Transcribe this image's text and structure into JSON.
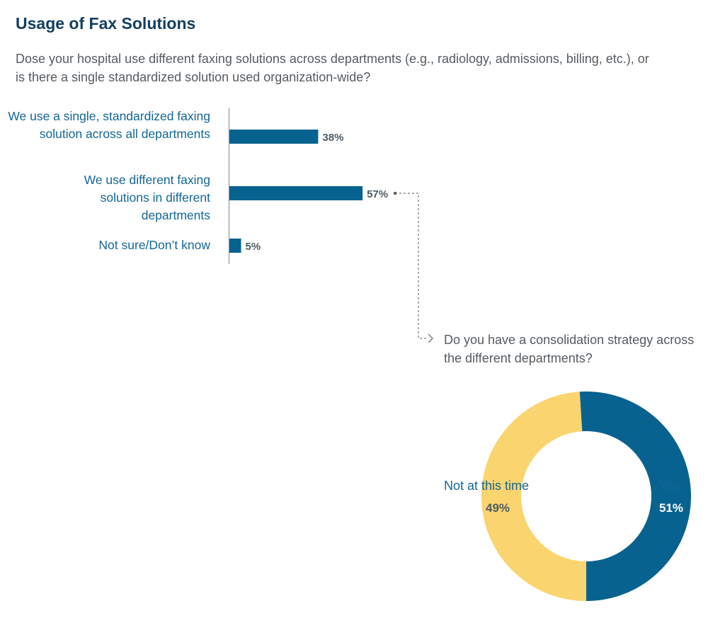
{
  "title": "Usage of Fax Solutions",
  "subtitle": "Dose your hospital use different faxing solutions across departments (e.g., radiology, admissions, billing, etc.), or is there a single standardized solution used organization-wide?",
  "colors": {
    "blue": "#08628f",
    "yellow": "#fad46e",
    "title": "#123f63",
    "label": "#136696"
  },
  "chart_data": [
    {
      "type": "bar",
      "orientation": "horizontal",
      "categories": [
        "We use a single, standardized faxing solution across all departments",
        "We use different faxing solutions in different departments",
        "Not sure/Don’t know"
      ],
      "values": [
        38,
        57,
        5
      ],
      "data_labels": [
        "38%",
        "57%",
        "5%"
      ],
      "xlim": [
        0,
        100
      ]
    },
    {
      "type": "pie",
      "donut": true,
      "title": "Do you have a consolidation strategy across the different departments?",
      "categories": [
        "Yes",
        "Not at this time"
      ],
      "values": [
        51,
        49
      ],
      "data_labels": [
        "51%",
        "49%"
      ]
    }
  ]
}
